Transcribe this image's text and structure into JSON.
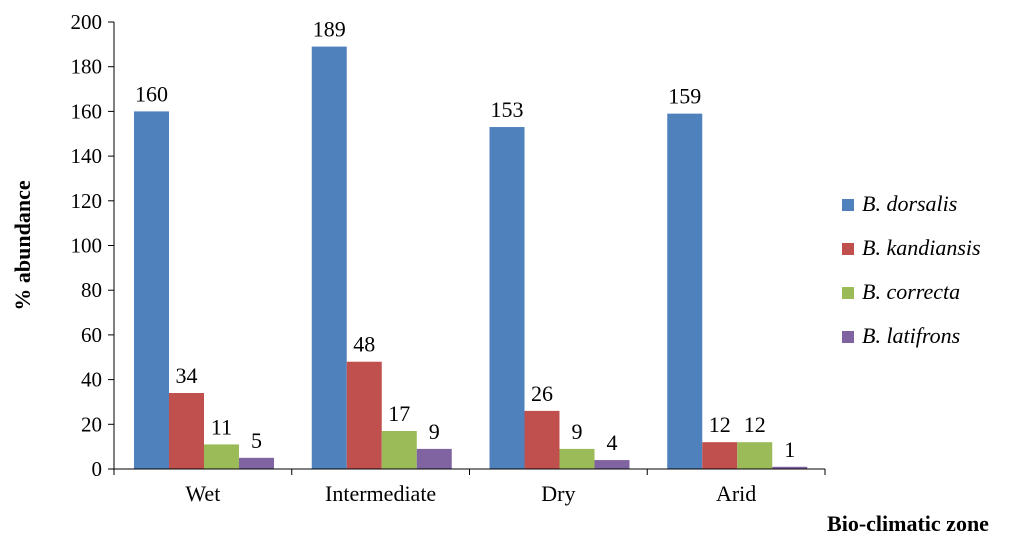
{
  "chart_data": {
    "type": "bar",
    "title": "",
    "xlabel": "Bio-climatic zone",
    "ylabel": "% abundance",
    "ylim": [
      0,
      200
    ],
    "yticks": [
      0,
      20,
      40,
      60,
      80,
      100,
      120,
      140,
      160,
      180,
      200
    ],
    "grid": false,
    "legend_position": "right",
    "categories": [
      "Wet",
      "Intermediate",
      "Dry",
      "Arid"
    ],
    "series": [
      {
        "name": "B. dorsalis",
        "color": "#4F81BD",
        "values": [
          160,
          189,
          153,
          159
        ]
      },
      {
        "name": "B. kandiansis",
        "color": "#C0504D",
        "values": [
          34,
          48,
          26,
          12
        ]
      },
      {
        "name": "B. correcta",
        "color": "#9BBB59",
        "values": [
          11,
          17,
          9,
          12
        ]
      },
      {
        "name": "B. latifrons",
        "color": "#8064A2",
        "values": [
          5,
          9,
          4,
          1
        ]
      }
    ]
  }
}
